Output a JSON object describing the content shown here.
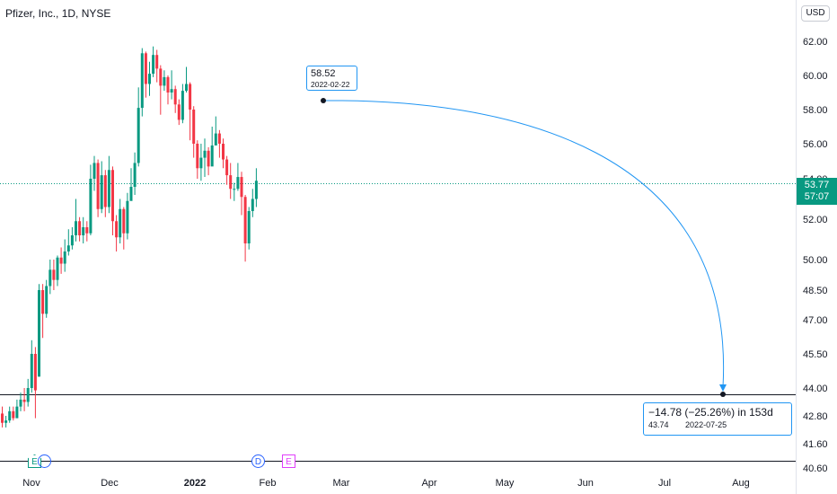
{
  "header": {
    "title": "Pfizer, Inc., 1D, NYSE",
    "currency": "USD"
  },
  "price_tag": {
    "price": "53.77",
    "countdown": "57:07"
  },
  "measure_start": {
    "price": "58.52",
    "date": "2022-02-22"
  },
  "measure_end": {
    "change": "−14.78 (−25.26%) in 153d",
    "price": "43.74",
    "date": "2022-07-25"
  },
  "events": [
    {
      "label": "E",
      "kind": "earnings",
      "color": "#089981"
    },
    {
      "label": "D",
      "kind": "dividend",
      "color": "#2962ff"
    },
    {
      "label": "E",
      "kind": "earnings",
      "color": "#e040fb"
    }
  ],
  "colors": {
    "up": "#089981",
    "down": "#f23645",
    "accent": "#2196f3"
  },
  "chart_data": {
    "type": "candlestick",
    "title": "Pfizer, Inc., 1D, NYSE",
    "y_ticks": [
      "62.00",
      "60.00",
      "58.00",
      "56.00",
      "54.00",
      "52.00",
      "50.00",
      "48.50",
      "47.00",
      "45.50",
      "44.00",
      "42.80",
      "41.60",
      "40.60"
    ],
    "x_ticks": [
      "Nov",
      "Dec",
      "2022",
      "Feb",
      "Mar",
      "Apr",
      "May",
      "Jun",
      "Jul",
      "Aug"
    ],
    "last_price": 53.77,
    "horizontal_line": 43.74,
    "bars": [
      [
        42.9,
        42.5,
        43.2,
        42.3
      ],
      [
        42.5,
        42.6,
        42.8,
        42.3
      ],
      [
        42.6,
        43.0,
        43.2,
        42.5
      ],
      [
        43.0,
        42.7,
        43.2,
        42.6
      ],
      [
        42.7,
        43.2,
        43.5,
        42.7
      ],
      [
        43.2,
        43.5,
        43.8,
        43.0
      ],
      [
        43.5,
        43.4,
        44.0,
        43.0
      ],
      [
        43.4,
        44.0,
        44.4,
        43.2
      ],
      [
        44.0,
        45.5,
        46.1,
        43.8
      ],
      [
        45.5,
        43.9,
        45.8,
        42.7
      ],
      [
        44.5,
        48.5,
        48.8,
        44.5
      ],
      [
        48.5,
        47.3,
        48.8,
        46.2
      ],
      [
        47.3,
        48.7,
        49.0,
        47.1
      ],
      [
        48.7,
        49.5,
        50.0,
        48.3
      ],
      [
        49.5,
        49.0,
        50.0,
        48.5
      ],
      [
        49.0,
        50.1,
        50.2,
        48.7
      ],
      [
        50.1,
        49.8,
        50.6,
        49.3
      ],
      [
        49.8,
        50.4,
        51.0,
        49.4
      ],
      [
        50.4,
        50.7,
        51.5,
        50.2
      ],
      [
        50.7,
        51.2,
        51.6,
        50.5
      ],
      [
        51.2,
        51.9,
        53.0,
        50.9
      ],
      [
        51.9,
        51.2,
        52.1,
        50.9
      ],
      [
        51.2,
        51.6,
        52.1,
        50.8
      ],
      [
        51.6,
        51.3,
        51.9,
        50.9
      ],
      [
        51.3,
        54.0,
        54.8,
        51.2
      ],
      [
        54.0,
        54.9,
        55.3,
        53.4
      ],
      [
        54.9,
        52.5,
        55.1,
        52.1
      ],
      [
        52.5,
        54.2,
        55.0,
        52.3
      ],
      [
        54.2,
        52.6,
        54.5,
        52.1
      ],
      [
        52.6,
        54.5,
        55.3,
        52.3
      ],
      [
        54.5,
        51.9,
        54.7,
        51.2
      ],
      [
        51.9,
        51.1,
        52.2,
        50.4
      ],
      [
        51.1,
        52.5,
        53.0,
        50.8
      ],
      [
        52.5,
        51.3,
        52.6,
        50.5
      ],
      [
        51.3,
        52.9,
        53.3,
        51.0
      ],
      [
        52.9,
        53.6,
        54.6,
        53.2
      ],
      [
        53.6,
        54.9,
        55.5,
        53.2
      ],
      [
        54.9,
        58.1,
        59.3,
        54.7
      ],
      [
        58.1,
        61.3,
        61.6,
        57.6
      ],
      [
        61.3,
        59.5,
        61.4,
        58.7
      ],
      [
        59.5,
        60.1,
        60.8,
        58.8
      ],
      [
        60.1,
        61.2,
        61.7,
        59.9
      ],
      [
        61.2,
        60.4,
        61.5,
        59.6
      ],
      [
        60.4,
        59.4,
        60.6,
        57.7
      ],
      [
        59.4,
        59.9,
        60.3,
        59.1
      ],
      [
        59.9,
        59.0,
        60.0,
        58.3
      ],
      [
        59.0,
        59.2,
        60.3,
        58.6
      ],
      [
        59.2,
        58.3,
        59.4,
        57.8
      ],
      [
        58.3,
        57.4,
        58.6,
        57.1
      ],
      [
        57.4,
        59.1,
        59.5,
        57.2
      ],
      [
        59.1,
        59.5,
        60.5,
        59.0
      ],
      [
        59.5,
        58.0,
        59.6,
        56.2
      ],
      [
        58.0,
        56.0,
        58.2,
        55.2
      ],
      [
        56.0,
        54.6,
        56.2,
        54.0
      ],
      [
        54.6,
        55.2,
        56.0,
        53.9
      ],
      [
        55.2,
        55.6,
        56.3,
        54.1
      ],
      [
        55.6,
        54.7,
        55.8,
        54.2
      ],
      [
        54.7,
        55.9,
        57.0,
        55.3
      ],
      [
        55.9,
        56.6,
        57.6,
        56.1
      ],
      [
        56.6,
        56.0,
        56.8,
        55.2
      ],
      [
        56.0,
        55.1,
        56.3,
        54.6
      ],
      [
        55.1,
        54.2,
        55.3,
        53.7
      ],
      [
        54.2,
        53.5,
        54.9,
        53.0
      ],
      [
        53.5,
        53.5,
        53.8,
        52.9
      ],
      [
        53.5,
        54.1,
        54.9,
        53.4
      ],
      [
        54.1,
        53.1,
        54.4,
        52.2
      ],
      [
        53.1,
        50.8,
        53.2,
        49.9
      ],
      [
        50.8,
        52.4,
        52.6,
        50.5
      ],
      [
        52.4,
        53.0,
        53.5,
        52.1
      ],
      [
        53.0,
        53.9,
        54.6,
        52.6
      ]
    ]
  }
}
